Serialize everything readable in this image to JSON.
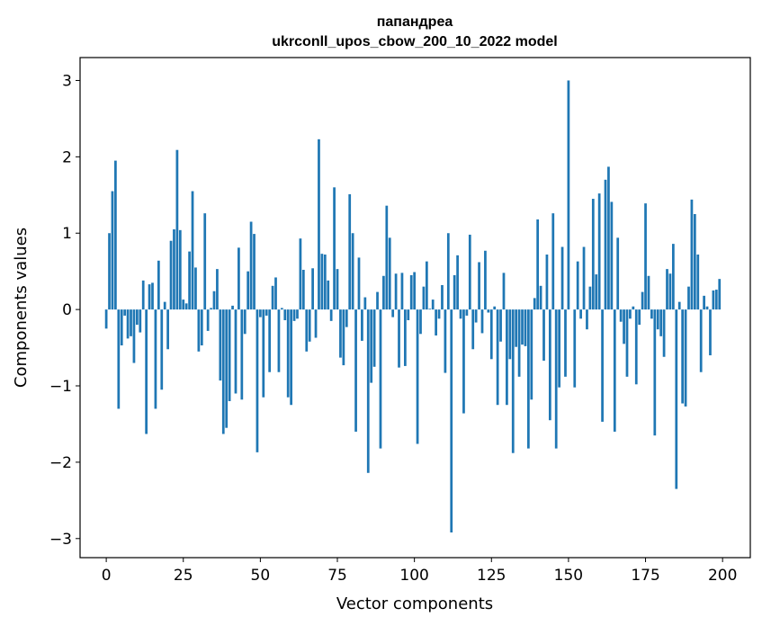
{
  "chart_data": {
    "type": "bar",
    "title_line1": "папандреа",
    "title_line2": "ukrconll_upos_cbow_200_10_2022 model",
    "xlabel": "Vector components",
    "ylabel": "Components values",
    "xlim": [
      -8.5,
      209
    ],
    "ylim": [
      -3.25,
      3.3
    ],
    "xticks": [
      0,
      25,
      50,
      75,
      100,
      125,
      150,
      175,
      200
    ],
    "yticks": [
      -3,
      -2,
      -1,
      0,
      1,
      2,
      3
    ],
    "xtick_labels": [
      "0",
      "25",
      "50",
      "75",
      "100",
      "125",
      "150",
      "175",
      "200"
    ],
    "ytick_labels": [
      "−3",
      "−2",
      "−1",
      "0",
      "1",
      "2",
      "3"
    ],
    "bar_color": "#1f77b4",
    "grid": false,
    "values": [
      -0.25,
      1.0,
      1.55,
      1.95,
      -1.3,
      -0.47,
      -0.08,
      -0.38,
      -0.35,
      -0.7,
      -0.2,
      -0.3,
      0.38,
      -1.63,
      0.33,
      0.35,
      -1.3,
      0.64,
      -1.05,
      0.1,
      -0.52,
      0.9,
      1.05,
      2.09,
      1.04,
      0.13,
      0.08,
      0.76,
      1.55,
      0.55,
      -0.55,
      -0.47,
      1.26,
      -0.28,
      0.02,
      0.24,
      0.53,
      -0.93,
      -1.63,
      -1.55,
      -1.2,
      0.05,
      -1.1,
      0.81,
      -1.18,
      -0.32,
      0.5,
      1.15,
      0.99,
      -1.87,
      -0.1,
      -1.15,
      -0.08,
      -0.82,
      0.31,
      0.42,
      -0.82,
      0.02,
      -0.14,
      -1.15,
      -1.25,
      -0.15,
      -0.12,
      0.93,
      0.52,
      -0.55,
      -0.42,
      0.54,
      -0.37,
      2.23,
      0.73,
      0.72,
      0.38,
      -0.15,
      1.6,
      0.53,
      -0.63,
      -0.73,
      -0.23,
      1.51,
      1.0,
      -1.6,
      0.68,
      -0.41,
      0.16,
      -2.14,
      -0.96,
      -0.75,
      0.23,
      -1.82,
      0.44,
      1.36,
      0.94,
      -0.1,
      0.47,
      -0.76,
      0.48,
      -0.74,
      -0.14,
      0.45,
      0.49,
      -1.76,
      -0.32,
      0.3,
      0.63,
      0.01,
      0.13,
      -0.34,
      -0.12,
      0.32,
      -0.83,
      1.0,
      -2.92,
      0.45,
      0.71,
      -0.12,
      -1.36,
      -0.08,
      0.98,
      -0.52,
      -0.17,
      0.62,
      -0.31,
      0.77,
      -0.04,
      -0.65,
      0.04,
      -1.25,
      -0.42,
      0.48,
      -1.25,
      -0.65,
      -1.88,
      -0.49,
      -0.88,
      -0.46,
      -0.48,
      -1.82,
      -1.18,
      0.15,
      1.18,
      0.31,
      -0.67,
      0.72,
      -1.45,
      1.26,
      -1.82,
      -1.02,
      0.82,
      -0.88,
      3.0,
      0.0,
      -1.02,
      0.63,
      -0.12,
      0.82,
      -0.26,
      0.3,
      1.45,
      0.46,
      1.52,
      -1.47,
      1.7,
      1.87,
      1.41,
      -1.6,
      0.94,
      -0.16,
      -0.45,
      -0.88,
      -0.12,
      0.04,
      -0.98,
      -0.2,
      0.23,
      1.39,
      0.44,
      -0.12,
      -1.65,
      -0.26,
      -0.35,
      -0.62,
      0.53,
      0.47,
      0.86,
      -2.35,
      0.1,
      -1.23,
      -1.27,
      0.3,
      1.44,
      1.25,
      0.72,
      -0.82,
      0.18,
      0.04,
      -0.6,
      0.25,
      0.26,
      0.4
    ]
  }
}
